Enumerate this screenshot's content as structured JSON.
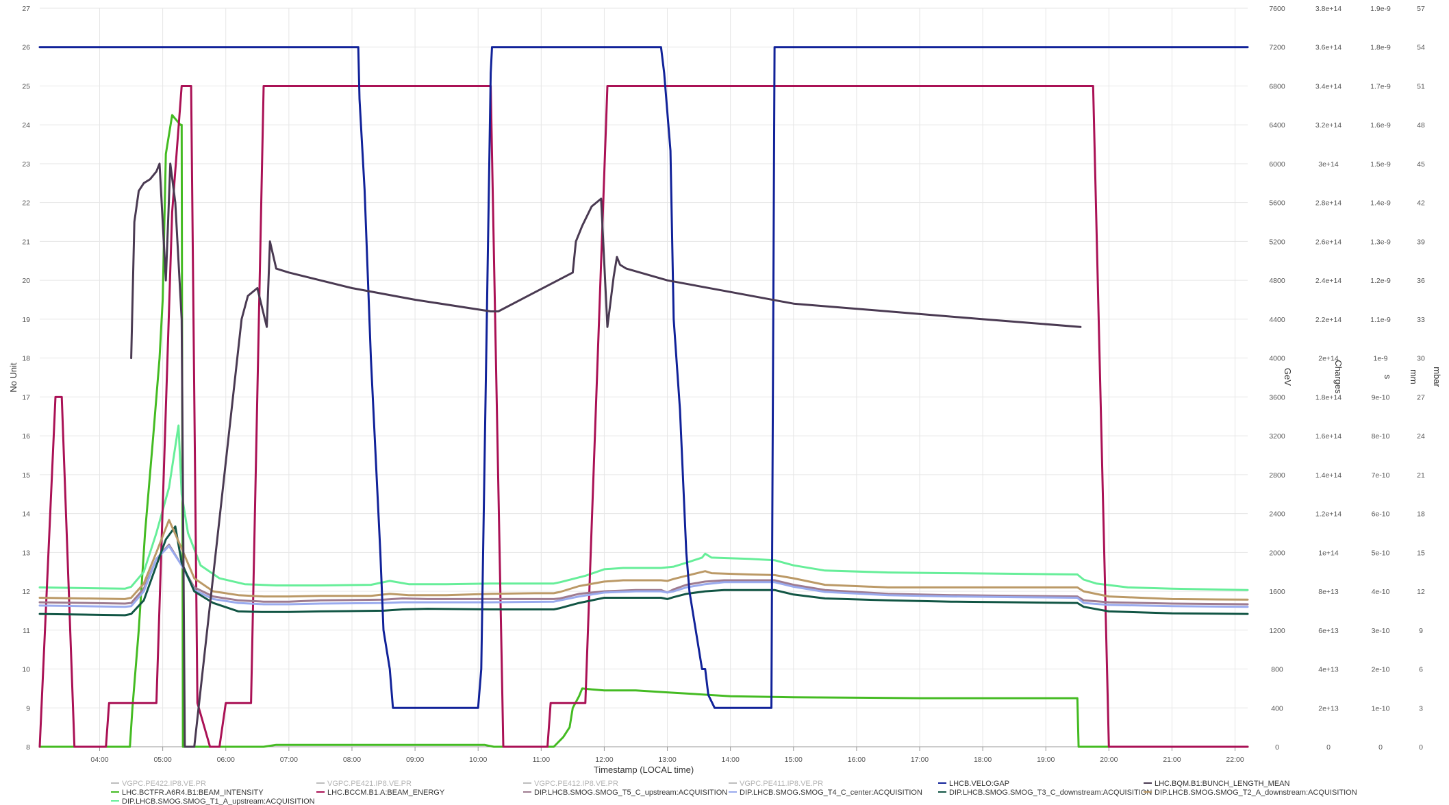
{
  "chart_data": {
    "type": "line",
    "xlabel": "Timestamp (LOCAL time)",
    "xlim": [
      3.05,
      22.2
    ],
    "x_ticks": [
      "04:00",
      "05:00",
      "06:00",
      "07:00",
      "08:00",
      "09:00",
      "10:00",
      "11:00",
      "12:00",
      "13:00",
      "14:00",
      "15:00",
      "16:00",
      "17:00",
      "18:00",
      "19:00",
      "20:00",
      "21:00",
      "22:00"
    ],
    "grid": true,
    "legend_placement": "bottom",
    "axes": [
      {
        "id": "nounit",
        "title": "No Unit",
        "side": "left",
        "min": 8,
        "max": 27,
        "ticks": [
          "8",
          "9",
          "10",
          "11",
          "12",
          "13",
          "14",
          "15",
          "16",
          "17",
          "18",
          "19",
          "20",
          "21",
          "22",
          "23",
          "24",
          "25",
          "26",
          "27"
        ]
      },
      {
        "id": "gev",
        "title": "GeV",
        "side": "right",
        "min": 0,
        "max": 7600,
        "ticks": [
          "0",
          "400",
          "800",
          "1200",
          "1600",
          "2000",
          "2400",
          "2800",
          "3200",
          "3600",
          "4000",
          "4400",
          "4800",
          "5200",
          "5600",
          "6000",
          "6400",
          "6800",
          "7200",
          "7600"
        ]
      },
      {
        "id": "charges",
        "title": "Charges",
        "side": "right",
        "min": 0,
        "max": 380000000000000.0,
        "ticks": [
          "0",
          "2e+13",
          "4e+13",
          "6e+13",
          "8e+13",
          "1e+14",
          "1.2e+14",
          "1.4e+14",
          "1.6e+14",
          "1.8e+14",
          "2e+14",
          "2.2e+14",
          "2.4e+14",
          "2.6e+14",
          "2.8e+14",
          "3e+14",
          "3.2e+14",
          "3.4e+14",
          "3.6e+14",
          "3.8e+14"
        ]
      },
      {
        "id": "s",
        "title": "s",
        "side": "right",
        "min": 0,
        "max": 1.9e-09,
        "ticks": [
          "0",
          "1e-10",
          "2e-10",
          "3e-10",
          "4e-10",
          "5e-10",
          "6e-10",
          "7e-10",
          "8e-10",
          "9e-10",
          "1e-9",
          "1.1e-9",
          "1.2e-9",
          "1.3e-9",
          "1.4e-9",
          "1.5e-9",
          "1.6e-9",
          "1.7e-9",
          "1.8e-9",
          "1.9e-9"
        ]
      },
      {
        "id": "mm",
        "title": "mm",
        "side": "right",
        "min": 0,
        "max": 57,
        "ticks": [
          "0",
          "3",
          "6",
          "9",
          "12",
          "15",
          "18",
          "21",
          "24",
          "27",
          "30",
          "33",
          "36",
          "39",
          "42",
          "45",
          "48",
          "51",
          "54",
          "57"
        ]
      },
      {
        "id": "mbar",
        "title": "mbar",
        "side": "right",
        "min": 0,
        "max": 57,
        "ticks": [
          "",
          "",
          "",
          "",
          "",
          "",
          "",
          "",
          "",
          "",
          "",
          "",
          "",
          "",
          "",
          "",
          "",
          "",
          "",
          ""
        ]
      }
    ],
    "series": [
      {
        "name": "VGPC.PE422.IP8.VE.PR",
        "color": "#bdbdbd",
        "axis": "nounit",
        "values": []
      },
      {
        "name": "LHC.BCTFR.A6R4.B1:BEAM_INTENSITY",
        "color": "#44bb22",
        "axis": "charges",
        "x": [
          3.05,
          4.48,
          4.52,
          4.62,
          4.72,
          4.85,
          4.95,
          5.0,
          5.05,
          5.15,
          5.28,
          5.3,
          5.32,
          5.5,
          5.9,
          6.3,
          6.6,
          6.8,
          7.5,
          8.5,
          10.1,
          10.25,
          11.2,
          11.35,
          11.45,
          11.5,
          11.6,
          11.65,
          11.8,
          12.0,
          12.5,
          13.0,
          14.0,
          15.0,
          17.0,
          19.5,
          19.52,
          20.0,
          22.2
        ],
        "values": [
          0,
          0,
          20000000000000.0,
          60000000000000.0,
          110000000000000.0,
          160000000000000.0,
          200000000000000.0,
          230000000000000.0,
          305000000000000.0,
          325000000000000.0,
          320000000000000.0,
          320000000000000.0,
          0,
          0,
          0,
          0,
          0,
          1000000000000.0,
          1000000000000.0,
          1000000000000.0,
          1000000000000.0,
          0,
          0,
          5000000000000.0,
          10000000000000.0,
          20000000000000.0,
          26000000000000.0,
          30000000000000.0,
          29500000000000.0,
          29000000000000.0,
          29000000000000.0,
          28000000000000.0,
          26000000000000.0,
          25500000000000.0,
          25000000000000.0,
          25000000000000.0,
          0,
          0,
          0
        ]
      },
      {
        "name": "DIP.LHCB.SMOG.SMOG_T1_A_upstream:ACQUISITION",
        "color": "#66ee99",
        "axis": "mbar",
        "x": [
          3.05,
          4.4,
          4.5,
          4.7,
          4.9,
          5.1,
          5.25,
          5.3,
          5.4,
          5.6,
          5.9,
          6.3,
          6.8,
          7.5,
          8.3,
          8.6,
          8.9,
          9.5,
          10.2,
          10.9,
          11.2,
          11.3,
          11.7,
          12.0,
          12.3,
          12.9,
          13.1,
          13.3,
          13.55,
          13.6,
          13.7,
          14.3,
          14.7,
          15.0,
          15.5,
          16.5,
          17.5,
          18.5,
          19.5,
          19.6,
          19.8,
          20.3,
          21.0,
          22.2
        ],
        "values": [
          12.3,
          12.2,
          12.35,
          13.5,
          16.5,
          20.0,
          24.8,
          19.5,
          16.5,
          14.0,
          13.0,
          12.55,
          12.45,
          12.45,
          12.5,
          12.8,
          12.55,
          12.55,
          12.6,
          12.6,
          12.6,
          12.7,
          13.2,
          13.7,
          13.8,
          13.8,
          13.9,
          14.2,
          14.6,
          14.9,
          14.6,
          14.5,
          14.4,
          14.0,
          13.6,
          13.45,
          13.4,
          13.35,
          13.3,
          12.9,
          12.6,
          12.3,
          12.2,
          12.1
        ]
      },
      {
        "name": "VGPC.PE421.IP8.VE.PR",
        "color": "#bdbdbd",
        "axis": "nounit",
        "values": []
      },
      {
        "name": "LHC.BCCM.B1.A:BEAM_ENERGY",
        "color": "#aa1155",
        "axis": "gev",
        "x": [
          3.05,
          3.3,
          3.4,
          3.6,
          3.72,
          3.82,
          4.1,
          4.15,
          4.65,
          4.9,
          5.15,
          5.3,
          5.45,
          5.55,
          5.75,
          5.9,
          6.0,
          6.05,
          6.4,
          6.6,
          6.85,
          7.5,
          10.2,
          10.4,
          10.45,
          10.7,
          10.75,
          11.1,
          11.15,
          11.7,
          12.05,
          12.25,
          13.0,
          13.3,
          15.0,
          19.5,
          19.75,
          20.0,
          22.2
        ],
        "values": [
          0,
          3600,
          3600,
          0,
          0,
          0,
          0,
          450,
          450,
          450,
          5500,
          6800,
          6800,
          450,
          0,
          0,
          450,
          450,
          450,
          6800,
          6800,
          6800,
          6800,
          0,
          0,
          0,
          0,
          0,
          450,
          450,
          6800,
          6800,
          6800,
          6800,
          6800,
          6800,
          6800,
          0,
          0
        ]
      },
      {
        "name": "DIP.LHCB.SMOG.SMOG_T5_C_upstream:ACQUISITION",
        "color": "#9e7b8f",
        "axis": "mbar",
        "x": [
          3.05,
          4.4,
          4.5,
          4.7,
          4.9,
          5.1,
          5.3,
          5.5,
          5.8,
          6.2,
          6.6,
          7.0,
          7.5,
          8.5,
          8.8,
          9.2,
          10.2,
          11.2,
          11.3,
          11.6,
          12.0,
          12.5,
          12.9,
          13.0,
          13.1,
          13.3,
          13.6,
          13.9,
          14.3,
          14.7,
          15.0,
          15.5,
          16.5,
          17.5,
          18.5,
          19.5,
          19.6,
          20.0,
          21.0,
          22.2
        ],
        "values": [
          11.15,
          11.05,
          11.1,
          12.2,
          14.5,
          15.6,
          14.0,
          12.3,
          11.6,
          11.3,
          11.2,
          11.2,
          11.3,
          11.35,
          11.45,
          11.4,
          11.4,
          11.4,
          11.45,
          11.8,
          12.0,
          12.1,
          12.1,
          11.9,
          12.15,
          12.5,
          12.75,
          12.85,
          12.85,
          12.85,
          12.5,
          12.1,
          11.8,
          11.7,
          11.65,
          11.6,
          11.3,
          11.15,
          11.05,
          11.0
        ]
      },
      {
        "name": "DIP.LHCB.SMOG.SMOG_T4_C_center:ACQUISITION",
        "color": "#99aaee",
        "axis": "mbar",
        "x": [
          3.05,
          4.4,
          4.5,
          4.7,
          4.9,
          5.1,
          5.3,
          5.5,
          5.8,
          6.2,
          6.6,
          7.0,
          7.5,
          8.5,
          8.8,
          9.2,
          10.2,
          11.2,
          11.3,
          11.6,
          12.0,
          12.5,
          12.9,
          13.0,
          13.1,
          13.3,
          13.6,
          13.9,
          14.3,
          14.7,
          15.0,
          15.5,
          16.5,
          17.5,
          18.5,
          19.5,
          19.6,
          20.0,
          21.0,
          22.2
        ],
        "values": [
          10.9,
          10.8,
          10.85,
          12.0,
          14.5,
          15.5,
          14.0,
          12.1,
          11.4,
          11.1,
          11.0,
          11.0,
          11.05,
          11.1,
          11.15,
          11.15,
          11.15,
          11.2,
          11.3,
          11.6,
          11.9,
          12.0,
          12.0,
          11.9,
          12.0,
          12.3,
          12.55,
          12.7,
          12.7,
          12.7,
          12.35,
          11.95,
          11.7,
          11.6,
          11.55,
          11.5,
          11.1,
          10.95,
          10.85,
          10.8
        ]
      },
      {
        "name": "VGPC.PE412.IP8.VE.PR",
        "color": "#bdbdbd",
        "axis": "nounit",
        "values": []
      },
      {
        "name": "DIP.LHCB.SMOG.SMOG_T3_C_downstream:ACQUISITION",
        "color": "#115544",
        "axis": "mbar",
        "x": [
          3.05,
          4.4,
          4.5,
          4.7,
          4.9,
          5.05,
          5.2,
          5.3,
          5.5,
          5.8,
          6.2,
          6.6,
          7.0,
          7.5,
          8.5,
          8.8,
          9.2,
          10.2,
          11.2,
          11.3,
          11.6,
          12.0,
          12.5,
          12.9,
          13.0,
          13.1,
          13.3,
          13.6,
          13.9,
          14.3,
          14.7,
          15.0,
          15.5,
          16.5,
          17.5,
          18.5,
          19.5,
          19.6,
          20.0,
          21.0,
          22.2
        ],
        "values": [
          10.25,
          10.15,
          10.25,
          11.3,
          14.0,
          16.0,
          17.0,
          14.2,
          12.0,
          11.1,
          10.45,
          10.4,
          10.4,
          10.45,
          10.5,
          10.6,
          10.65,
          10.6,
          10.6,
          10.7,
          11.1,
          11.5,
          11.5,
          11.5,
          11.4,
          11.55,
          11.8,
          12.0,
          12.1,
          12.1,
          12.1,
          11.75,
          11.45,
          11.3,
          11.2,
          11.15,
          11.1,
          10.8,
          10.45,
          10.3,
          10.25
        ]
      },
      {
        "name": "DIP.LHCB.SMOG.SMOG_T2_A_downstream:ACQUISITION",
        "color": "#bb9966",
        "axis": "mbar",
        "x": [
          3.05,
          4.4,
          4.5,
          4.7,
          4.9,
          5.1,
          5.3,
          5.5,
          5.8,
          6.2,
          6.6,
          7.0,
          7.5,
          8.3,
          8.6,
          8.9,
          9.5,
          10.2,
          10.9,
          11.2,
          11.3,
          11.6,
          12.0,
          12.3,
          12.9,
          13.0,
          13.1,
          13.3,
          13.6,
          13.7,
          14.3,
          14.7,
          15.0,
          15.5,
          16.5,
          17.5,
          18.5,
          19.5,
          19.6,
          20.0,
          21.0,
          22.2
        ],
        "values": [
          11.5,
          11.4,
          11.5,
          12.6,
          15.0,
          17.5,
          15.3,
          13.0,
          12.0,
          11.7,
          11.6,
          11.6,
          11.65,
          11.65,
          11.8,
          11.7,
          11.7,
          11.8,
          11.85,
          11.85,
          11.95,
          12.4,
          12.75,
          12.85,
          12.85,
          12.8,
          12.95,
          13.2,
          13.55,
          13.4,
          13.3,
          13.25,
          13.0,
          12.5,
          12.3,
          12.3,
          12.3,
          12.3,
          12.0,
          11.6,
          11.4,
          11.35
        ]
      },
      {
        "name": "VGPC.PE411.IP8.VE.PR",
        "color": "#bdbdbd",
        "axis": "nounit",
        "values": []
      },
      {
        "name": "LHCB.VELO:GAP",
        "color": "#112299",
        "axis": "mm",
        "x": [
          3.05,
          8.0,
          8.1,
          8.12,
          8.2,
          8.3,
          8.35,
          8.45,
          8.5,
          8.6,
          8.65,
          10.0,
          10.05,
          10.2,
          10.22,
          10.25,
          12.9,
          12.95,
          13.05,
          13.1,
          13.2,
          13.3,
          13.35,
          13.45,
          13.55,
          13.6,
          13.65,
          13.75,
          13.8,
          14.65,
          14.7,
          22.2
        ],
        "values": [
          54,
          54,
          54,
          50,
          43,
          30,
          25,
          15,
          9,
          6,
          3,
          3,
          6,
          52,
          54,
          54,
          54,
          52,
          46,
          33,
          26,
          15,
          12,
          9,
          6,
          6,
          4,
          3,
          3,
          3,
          54,
          54
        ]
      },
      {
        "name": "LHC.BQM.B1:BUNCH_LENGTH_MEAN",
        "color": "#4a3a52",
        "axis": "s",
        "x": [
          4.5,
          4.55,
          4.62,
          4.7,
          4.8,
          4.9,
          4.95,
          5.05,
          5.12,
          5.2,
          5.3,
          5.35,
          5.5,
          6.25,
          6.35,
          6.5,
          6.65,
          6.7,
          6.8,
          7.0,
          8.0,
          9.0,
          10.2,
          10.32,
          11.5,
          11.55,
          11.65,
          11.8,
          11.95,
          12.05,
          12.15,
          12.2,
          12.25,
          12.35,
          13.0,
          14.0,
          15.0,
          16.5,
          18.0,
          19.55
        ],
        "values": [
          1e-09,
          1.35e-09,
          1.43e-09,
          1.45e-09,
          1.46e-09,
          1.48e-09,
          1.5e-09,
          1.2e-09,
          1.5e-09,
          1.4e-09,
          1.1e-09,
          0,
          0,
          1.1e-09,
          1.16e-09,
          1.18e-09,
          1.08e-09,
          1.3e-09,
          1.23e-09,
          1.22e-09,
          1.18e-09,
          1.15e-09,
          1.12e-09,
          1.12e-09,
          1.22e-09,
          1.3e-09,
          1.34e-09,
          1.39e-09,
          1.41e-09,
          1.08e-09,
          1.21e-09,
          1.26e-09,
          1.24e-09,
          1.23e-09,
          1.2e-09,
          1.17e-09,
          1.14e-09,
          1.12e-09,
          1.1e-09,
          1.08e-09
        ]
      }
    ],
    "legend": [
      "VGPC.PE422.IP8.VE.PR",
      "VGPC.PE421.IP8.VE.PR",
      "VGPC.PE412.IP8.VE.PR",
      "VGPC.PE411.IP8.VE.PR",
      "LHCB.VELO:GAP",
      "LHC.BQM.B1:BUNCH_LENGTH_MEAN",
      "LHC.BCTFR.A6R4.B1:BEAM_INTENSITY",
      "LHC.BCCM.B1.A:BEAM_ENERGY",
      "DIP.LHCB.SMOG.SMOG_T5_C_upstream:ACQUISITION",
      "DIP.LHCB.SMOG.SMOG_T4_C_center:ACQUISITION",
      "DIP.LHCB.SMOG.SMOG_T3_C_downstream:ACQUISITION",
      "DIP.LHCB.SMOG.SMOG_T2_A_downstream:ACQUISITION",
      "DIP.LHCB.SMOG.SMOG_T1_A_upstream:ACQUISITION"
    ]
  }
}
